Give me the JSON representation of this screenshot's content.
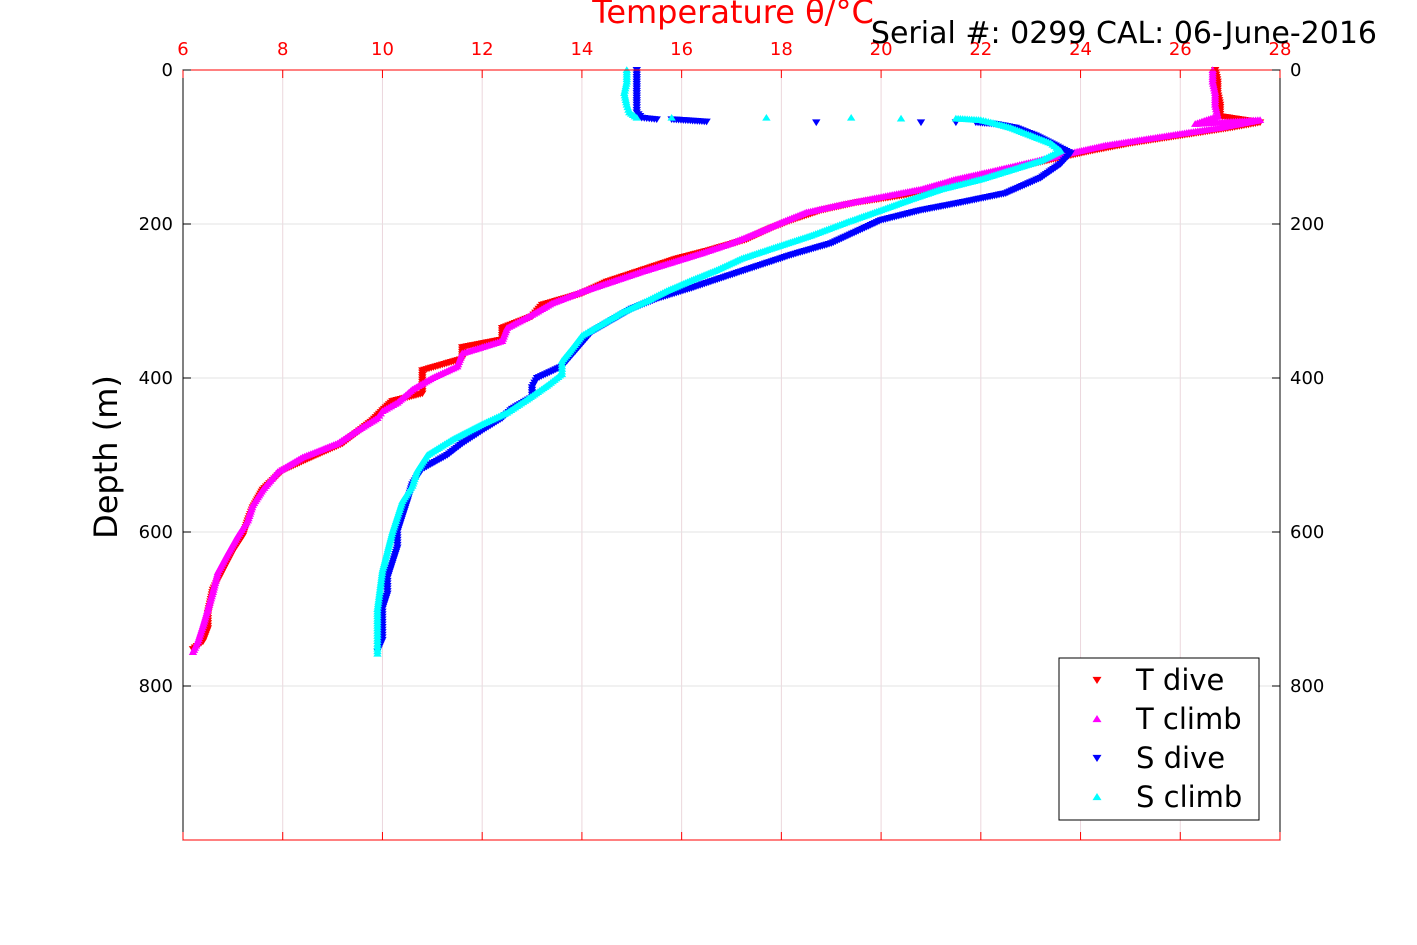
{
  "serial_label": "Serial #: 0299 CAL: 06-June-2016",
  "chart_data": {
    "type": "scatter",
    "title": "Temperature θ/°C",
    "xlabel": "Temperature θ/°C",
    "ylabel": "Depth (m)",
    "xlim": [
      6,
      28
    ],
    "ylim": [
      0,
      1000
    ],
    "y_reversed": true,
    "x_axis_position": "top",
    "x_ticks": [
      "6",
      "8",
      "10",
      "12",
      "14",
      "16",
      "18",
      "20",
      "22",
      "24",
      "26",
      "28"
    ],
    "y_ticks": [
      "0",
      "200",
      "400",
      "600",
      "800"
    ],
    "grid": true,
    "legend_position": "bottom-right",
    "colors": {
      "axis_x": "#ff0000",
      "axis_y": "#000000",
      "grid": "#e6e6e6"
    },
    "series": [
      {
        "name": "T dive",
        "color": "#ff0000",
        "marker": "triangle-down",
        "points": [
          [
            26.7,
            0
          ],
          [
            26.75,
            15
          ],
          [
            26.75,
            30
          ],
          [
            26.8,
            45
          ],
          [
            26.8,
            60
          ],
          [
            27.6,
            68
          ],
          [
            27.0,
            75
          ],
          [
            26.0,
            85
          ],
          [
            25.0,
            95
          ],
          [
            24.2,
            105
          ],
          [
            23.5,
            115
          ],
          [
            22.8,
            125
          ],
          [
            22.0,
            140
          ],
          [
            21.2,
            152
          ],
          [
            20.5,
            162
          ],
          [
            19.5,
            172
          ],
          [
            18.8,
            182
          ],
          [
            18.2,
            195
          ],
          [
            17.8,
            205
          ],
          [
            17.3,
            220
          ],
          [
            16.5,
            235
          ],
          [
            15.9,
            245
          ],
          [
            15.2,
            260
          ],
          [
            14.5,
            275
          ],
          [
            14.0,
            290
          ],
          [
            13.2,
            305
          ],
          [
            13.0,
            320
          ],
          [
            12.4,
            335
          ],
          [
            12.4,
            350
          ],
          [
            11.6,
            360
          ],
          [
            11.6,
            375
          ],
          [
            10.8,
            390
          ],
          [
            10.8,
            405
          ],
          [
            10.8,
            420
          ],
          [
            10.2,
            430
          ],
          [
            10.0,
            442
          ],
          [
            9.8,
            455
          ],
          [
            9.5,
            470
          ],
          [
            9.2,
            485
          ],
          [
            8.5,
            505
          ],
          [
            8.0,
            520
          ],
          [
            7.6,
            545
          ],
          [
            7.4,
            568
          ],
          [
            7.3,
            585
          ],
          [
            7.2,
            605
          ],
          [
            7.0,
            625
          ],
          [
            6.8,
            650
          ],
          [
            6.6,
            675
          ],
          [
            6.5,
            705
          ],
          [
            6.5,
            725
          ],
          [
            6.4,
            742
          ],
          [
            6.2,
            752
          ]
        ]
      },
      {
        "name": "T climb",
        "color": "#ff00ff",
        "marker": "triangle-up",
        "points": [
          [
            26.65,
            0
          ],
          [
            26.65,
            15
          ],
          [
            26.7,
            30
          ],
          [
            26.7,
            45
          ],
          [
            26.75,
            60
          ],
          [
            26.3,
            70
          ],
          [
            27.6,
            65
          ],
          [
            26.8,
            75
          ],
          [
            25.5,
            88
          ],
          [
            24.5,
            98
          ],
          [
            23.8,
            108
          ],
          [
            23.0,
            120
          ],
          [
            22.2,
            132
          ],
          [
            21.5,
            142
          ],
          [
            20.8,
            155
          ],
          [
            20.0,
            165
          ],
          [
            19.2,
            175
          ],
          [
            18.5,
            185
          ],
          [
            18.0,
            198
          ],
          [
            17.5,
            212
          ],
          [
            17.0,
            225
          ],
          [
            16.4,
            238
          ],
          [
            15.8,
            250
          ],
          [
            15.2,
            262
          ],
          [
            14.6,
            275
          ],
          [
            14.0,
            288
          ],
          [
            13.4,
            303
          ],
          [
            13.0,
            318
          ],
          [
            12.5,
            335
          ],
          [
            12.4,
            352
          ],
          [
            11.6,
            368
          ],
          [
            11.5,
            385
          ],
          [
            11.0,
            400
          ],
          [
            10.6,
            415
          ],
          [
            10.3,
            432
          ],
          [
            10.0,
            443
          ],
          [
            9.9,
            452
          ],
          [
            9.5,
            468
          ],
          [
            9.1,
            485
          ],
          [
            8.4,
            503
          ],
          [
            7.9,
            522
          ],
          [
            7.6,
            545
          ],
          [
            7.4,
            565
          ],
          [
            7.3,
            585
          ],
          [
            7.1,
            605
          ],
          [
            6.9,
            628
          ],
          [
            6.7,
            652
          ],
          [
            6.6,
            678
          ],
          [
            6.5,
            700
          ],
          [
            6.4,
            722
          ],
          [
            6.3,
            742
          ],
          [
            6.2,
            756
          ]
        ]
      },
      {
        "name": "S dive",
        "color": "#0000ff",
        "marker": "triangle-down",
        "points": [
          [
            15.1,
            0
          ],
          [
            15.1,
            15
          ],
          [
            15.1,
            30
          ],
          [
            15.1,
            45
          ],
          [
            15.1,
            55
          ],
          [
            15.2,
            62
          ],
          [
            15.5,
            64
          ],
          [
            15.8,
            64
          ],
          [
            16.5,
            67
          ],
          [
            18.7,
            68
          ],
          [
            20.8,
            68
          ],
          [
            21.5,
            68
          ],
          [
            21.9,
            68
          ],
          [
            22.3,
            70
          ],
          [
            22.7,
            75
          ],
          [
            23.1,
            85
          ],
          [
            23.5,
            98
          ],
          [
            23.8,
            108
          ],
          [
            23.6,
            122
          ],
          [
            23.2,
            140
          ],
          [
            22.5,
            160
          ],
          [
            21.6,
            172
          ],
          [
            20.8,
            182
          ],
          [
            20.0,
            195
          ],
          [
            19.5,
            210
          ],
          [
            19.0,
            225
          ],
          [
            18.2,
            240
          ],
          [
            17.5,
            255
          ],
          [
            16.8,
            270
          ],
          [
            16.2,
            283
          ],
          [
            15.5,
            297
          ],
          [
            15.0,
            310
          ],
          [
            14.6,
            325
          ],
          [
            14.2,
            340
          ],
          [
            14.0,
            355
          ],
          [
            13.8,
            370
          ],
          [
            13.6,
            385
          ],
          [
            13.1,
            400
          ],
          [
            13.0,
            412
          ],
          [
            13.0,
            425
          ],
          [
            12.6,
            440
          ],
          [
            12.4,
            452
          ],
          [
            12.0,
            468
          ],
          [
            11.6,
            485
          ],
          [
            11.3,
            500
          ],
          [
            10.8,
            518
          ],
          [
            10.6,
            538
          ],
          [
            10.5,
            560
          ],
          [
            10.4,
            580
          ],
          [
            10.3,
            600
          ],
          [
            10.3,
            620
          ],
          [
            10.2,
            640
          ],
          [
            10.1,
            660
          ],
          [
            10.1,
            680
          ],
          [
            10.0,
            700
          ],
          [
            10.0,
            720
          ],
          [
            10.0,
            740
          ],
          [
            9.9,
            755
          ]
        ]
      },
      {
        "name": "S climb",
        "color": "#00ffff",
        "marker": "triangle-up",
        "points": [
          [
            14.9,
            0
          ],
          [
            14.9,
            15
          ],
          [
            14.85,
            30
          ],
          [
            14.9,
            45
          ],
          [
            14.95,
            55
          ],
          [
            15.1,
            62
          ],
          [
            15.8,
            62
          ],
          [
            17.7,
            62
          ],
          [
            19.4,
            62
          ],
          [
            20.4,
            63
          ],
          [
            21.5,
            63
          ],
          [
            22.0,
            65
          ],
          [
            22.2,
            68
          ],
          [
            22.6,
            75
          ],
          [
            23.0,
            85
          ],
          [
            23.4,
            95
          ],
          [
            23.6,
            105
          ],
          [
            23.2,
            118
          ],
          [
            22.6,
            130
          ],
          [
            22.0,
            142
          ],
          [
            21.2,
            155
          ],
          [
            20.6,
            168
          ],
          [
            20.0,
            182
          ],
          [
            19.3,
            198
          ],
          [
            18.6,
            215
          ],
          [
            17.8,
            232
          ],
          [
            17.2,
            245
          ],
          [
            16.7,
            260
          ],
          [
            16.2,
            273
          ],
          [
            15.7,
            287
          ],
          [
            15.3,
            300
          ],
          [
            14.8,
            315
          ],
          [
            14.4,
            330
          ],
          [
            14.0,
            345
          ],
          [
            13.8,
            362
          ],
          [
            13.6,
            378
          ],
          [
            13.6,
            395
          ],
          [
            13.3,
            410
          ],
          [
            12.9,
            428
          ],
          [
            12.5,
            445
          ],
          [
            12.0,
            460
          ],
          [
            11.4,
            480
          ],
          [
            10.9,
            500
          ],
          [
            10.7,
            520
          ],
          [
            10.6,
            540
          ],
          [
            10.4,
            560
          ],
          [
            10.3,
            580
          ],
          [
            10.2,
            600
          ],
          [
            10.1,
            625
          ],
          [
            10.0,
            650
          ],
          [
            9.95,
            675
          ],
          [
            9.9,
            700
          ],
          [
            9.9,
            725
          ],
          [
            9.9,
            745
          ],
          [
            9.9,
            758
          ]
        ]
      }
    ]
  }
}
